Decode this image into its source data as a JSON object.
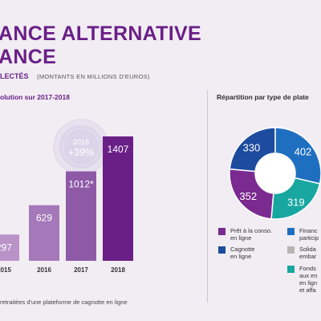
{
  "header": {
    "title_line1": "ANCE ALTERNATIVE",
    "title_line2": "ANCE",
    "section_label": "LECTÉS",
    "section_note": "(MONTANTS EN MILLIONS D'EUROS)"
  },
  "footnote": "retraitées d'une plateforme de cagnotte en ligne",
  "colors": {
    "accent": "#6a1f87",
    "bar_2015": "#b992c8",
    "bar_2016": "#a578b9",
    "bar_2017": "#8e5aa7",
    "bar_2018": "#6a1f87"
  },
  "chart_data": [
    {
      "type": "bar",
      "title": "olution sur 2017-2018",
      "categories": [
        "2015",
        "2016",
        "2017",
        "2018"
      ],
      "values": [
        297,
        629,
        1012,
        1407
      ],
      "value_labels": [
        "297",
        "629",
        "1012*",
        "1407"
      ],
      "ylim": [
        0,
        1600
      ],
      "grid": false,
      "annotation": {
        "line1": "2018",
        "line2": "+39%"
      }
    },
    {
      "type": "pie",
      "title": "Répartition par type de plate",
      "slices": [
        {
          "value": 330,
          "label": "330",
          "color": "#1d4b9e"
        },
        {
          "value": 402,
          "label": "402",
          "color": "#1f6fc0"
        },
        {
          "value": 319,
          "label": "319",
          "color": "#18a7a0"
        },
        {
          "value": 352,
          "label": "352",
          "color": "#7b2a90"
        }
      ],
      "legend": [
        {
          "label": "Prêt à la conso.\nen ligne",
          "color": "#7b2a90"
        },
        {
          "label": "Financ\nparticip",
          "color": "#1f6fc0"
        },
        {
          "label": "Cagnotte\nen ligne",
          "color": "#1d4b9e"
        },
        {
          "label": "Solida\nembar",
          "color": "#b5b5b5"
        },
        {
          "label": "Fonds\naux en\nen lign\net affa",
          "color": "#18a7a0"
        }
      ]
    }
  ]
}
